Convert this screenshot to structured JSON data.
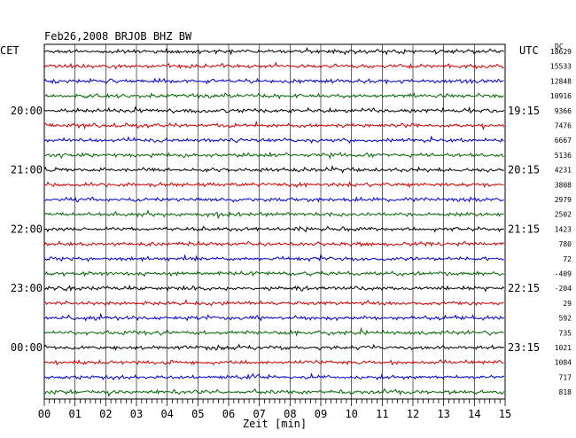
{
  "chart_data": {
    "type": "line",
    "title": "Feb26,2008   BRJOB BHZ BW",
    "left_zone_label": "CET",
    "right_zone_label": "UTC",
    "dc_header": "DC",
    "xlabel": "Zeit [min]",
    "xlim": [
      0,
      15
    ],
    "x_ticks": [
      "00",
      "01",
      "02",
      "03",
      "04",
      "05",
      "06",
      "07",
      "08",
      "09",
      "10",
      "11",
      "12",
      "13",
      "14",
      "15"
    ],
    "trace_colors": [
      "#000000",
      "#cc0000",
      "#0000cc",
      "#006600"
    ],
    "traces": [
      {
        "left": "",
        "right": "",
        "dc": "18629"
      },
      {
        "left": "",
        "right": "",
        "dc": "15533"
      },
      {
        "left": "",
        "right": "",
        "dc": "12848"
      },
      {
        "left": "",
        "right": "",
        "dc": "10916"
      },
      {
        "left": "20:00",
        "right": "19:15",
        "dc": "9366"
      },
      {
        "left": "",
        "right": "",
        "dc": "7476"
      },
      {
        "left": "",
        "right": "",
        "dc": "6667"
      },
      {
        "left": "",
        "right": "",
        "dc": "5136"
      },
      {
        "left": "21:00",
        "right": "20:15",
        "dc": "4231"
      },
      {
        "left": "",
        "right": "",
        "dc": "3808"
      },
      {
        "left": "",
        "right": "",
        "dc": "2979"
      },
      {
        "left": "",
        "right": "",
        "dc": "2502"
      },
      {
        "left": "22:00",
        "right": "21:15",
        "dc": "1423"
      },
      {
        "left": "",
        "right": "",
        "dc": "780"
      },
      {
        "left": "",
        "right": "",
        "dc": "72"
      },
      {
        "left": "",
        "right": "",
        "dc": "-409"
      },
      {
        "left": "23:00",
        "right": "22:15",
        "dc": "-204"
      },
      {
        "left": "",
        "right": "",
        "dc": "29"
      },
      {
        "left": "",
        "right": "",
        "dc": "592"
      },
      {
        "left": "",
        "right": "",
        "dc": "735"
      },
      {
        "left": "00:00",
        "right": "23:15",
        "dc": "1021"
      },
      {
        "left": "",
        "right": "",
        "dc": "1084"
      },
      {
        "left": "",
        "right": "",
        "dc": "717"
      },
      {
        "left": "",
        "right": "",
        "dc": "818"
      }
    ]
  }
}
